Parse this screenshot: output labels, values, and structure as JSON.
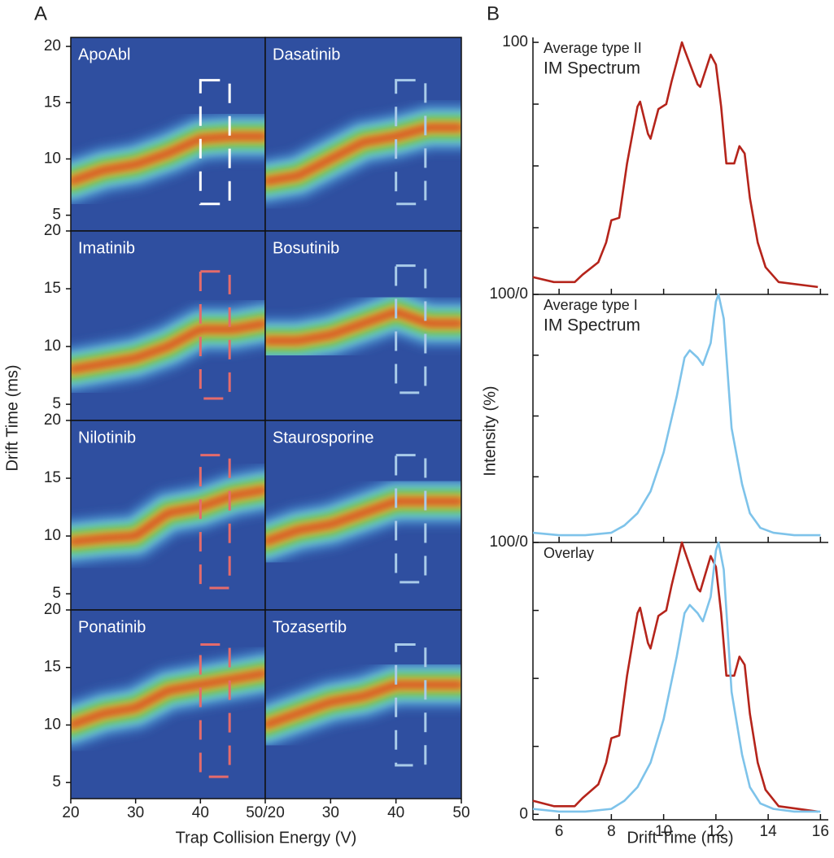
{
  "panels": [
    {
      "label": "A",
      "xlabel": "Trap Collision Energy (V)",
      "ylabel": "Drift Time (ms)"
    },
    {
      "label": "B",
      "xlabel": "Drift Time (ms)",
      "ylabel": "Intensity (%)"
    }
  ],
  "chart_data": [
    {
      "type": "heatmap",
      "title": "ApoAbl",
      "xlim": [
        20,
        50
      ],
      "ylim": [
        3.6,
        20.8
      ],
      "yticks": [
        5,
        10,
        15,
        20
      ],
      "ridge": {
        "x": [
          20,
          25,
          30,
          35,
          40,
          45,
          50
        ],
        "y": [
          8,
          9,
          9.5,
          10.5,
          11.8,
          12,
          12
        ]
      },
      "box": {
        "x": [
          40,
          44.5
        ],
        "y": [
          6,
          17
        ],
        "color": "#ffffff"
      }
    },
    {
      "type": "heatmap",
      "title": "Dasatinib",
      "xlim": [
        20,
        50
      ],
      "ylim": [
        3.6,
        20.8
      ],
      "ridge": {
        "x": [
          20,
          25,
          30,
          35,
          40,
          45,
          50
        ],
        "y": [
          8,
          8.5,
          10,
          11.5,
          12,
          12.8,
          12.8
        ]
      },
      "box": {
        "x": [
          40,
          44.5
        ],
        "y": [
          6,
          17
        ],
        "color": "#a9cbe9"
      }
    },
    {
      "type": "heatmap",
      "title": "Imatinib",
      "xlim": [
        20,
        50
      ],
      "ylim": [
        3.6,
        20
      ],
      "yticks": [
        5,
        10,
        15,
        20
      ],
      "ridge": {
        "x": [
          20,
          25,
          30,
          35,
          40,
          45,
          50
        ],
        "y": [
          8,
          8.5,
          9,
          10,
          11.5,
          11.5,
          12
        ]
      },
      "box": {
        "x": [
          40,
          44.5
        ],
        "y": [
          5.5,
          16.5
        ],
        "color": "#e56b6b"
      }
    },
    {
      "type": "heatmap",
      "title": "Bosutinib",
      "xlim": [
        20,
        50
      ],
      "ylim": [
        3.6,
        20
      ],
      "ridge": {
        "x": [
          20,
          25,
          30,
          35,
          40,
          45,
          50
        ],
        "y": [
          10.5,
          10.5,
          11,
          12,
          13,
          12,
          12
        ]
      },
      "box": {
        "x": [
          40,
          44.5
        ],
        "y": [
          6,
          17
        ],
        "color": "#a9cbe9"
      }
    },
    {
      "type": "heatmap",
      "title": "Nilotinib",
      "xlim": [
        20,
        50
      ],
      "ylim": [
        3.6,
        20
      ],
      "yticks": [
        5,
        10,
        15,
        20
      ],
      "ridge": {
        "x": [
          20,
          25,
          30,
          35,
          40,
          45,
          50
        ],
        "y": [
          9.5,
          9.8,
          10,
          12,
          12.5,
          13.5,
          14
        ]
      },
      "box": {
        "x": [
          40,
          44.5
        ],
        "y": [
          5.5,
          17
        ],
        "color": "#e56b6b"
      }
    },
    {
      "type": "heatmap",
      "title": "Staurosporine",
      "xlim": [
        20,
        50
      ],
      "ylim": [
        3.6,
        20
      ],
      "ridge": {
        "x": [
          20,
          25,
          30,
          35,
          40,
          45,
          50
        ],
        "y": [
          9.5,
          10.5,
          11,
          12,
          13,
          13,
          13
        ]
      },
      "box": {
        "x": [
          40,
          44.5
        ],
        "y": [
          6,
          17
        ],
        "color": "#a9cbe9"
      }
    },
    {
      "type": "heatmap",
      "title": "Ponatinib",
      "xlim": [
        20,
        50
      ],
      "ylim": [
        3.6,
        20
      ],
      "yticks": [
        5,
        10,
        15,
        20
      ],
      "xticks": [
        20,
        30,
        40,
        {
          "value": 50,
          "label": "50/20"
        }
      ],
      "ridge": {
        "x": [
          20,
          25,
          30,
          35,
          40,
          45,
          50
        ],
        "y": [
          10,
          11,
          11.5,
          13,
          13.5,
          14,
          14.5
        ]
      },
      "box": {
        "x": [
          40,
          44.5
        ],
        "y": [
          5.5,
          17
        ],
        "color": "#e56b6b"
      }
    },
    {
      "type": "heatmap",
      "title": "Tozasertib",
      "xlim": [
        20,
        50
      ],
      "ylim": [
        3.6,
        20
      ],
      "xticks": [
        30,
        40,
        50
      ],
      "ridge": {
        "x": [
          20,
          25,
          30,
          35,
          40,
          45,
          50
        ],
        "y": [
          10,
          11,
          12,
          12.5,
          13.5,
          13.5,
          13.5
        ]
      },
      "box": {
        "x": [
          40,
          44.5
        ],
        "y": [
          6.5,
          17
        ],
        "color": "#a9cbe9"
      }
    },
    {
      "type": "line",
      "title": [
        "Average type II",
        "IM Spectrum"
      ],
      "xlim": [
        5,
        16.3
      ],
      "ylim": [
        -2,
        102
      ],
      "yticks": [
        100
      ],
      "yminor": [
        25,
        50,
        75
      ],
      "series": [
        {
          "color": "#b5241b",
          "x": [
            5,
            5.8,
            6.6,
            6.9,
            7.5,
            7.8,
            8.0,
            8.3,
            8.6,
            9.0,
            9.1,
            9.4,
            9.5,
            9.8,
            10.1,
            10.3,
            10.7,
            10.8,
            11.3,
            11.4,
            11.8,
            12.0,
            12.2,
            12.4,
            12.7,
            12.9,
            13.1,
            13.3,
            13.6,
            13.9,
            14.4,
            15.9
          ],
          "values": [
            5,
            3,
            3,
            6,
            11,
            19,
            28,
            29,
            51,
            74,
            76,
            63,
            61,
            73,
            75,
            84,
            100,
            97,
            83,
            82,
            95,
            91,
            74,
            51,
            51,
            58,
            55,
            37,
            19,
            9,
            3,
            1
          ]
        }
      ]
    },
    {
      "type": "line",
      "title": [
        "Average type I",
        "IM Spectrum"
      ],
      "xlim": [
        5,
        16.3
      ],
      "ylim": [
        -2,
        100
      ],
      "yticks": [
        {
          "value": 100,
          "label": "100/0"
        }
      ],
      "yminor": [
        25,
        50,
        75
      ],
      "series": [
        {
          "color": "#7ec3ea",
          "x": [
            5,
            6,
            7,
            8,
            8.5,
            9,
            9.5,
            10,
            10.5,
            10.8,
            11,
            11.3,
            11.5,
            11.8,
            12,
            12.1,
            12.3,
            12.6,
            13,
            13.3,
            13.7,
            14.2,
            15,
            16
          ],
          "values": [
            2,
            1,
            1,
            2,
            5,
            10,
            19,
            35,
            58,
            74,
            77,
            74,
            71,
            80,
            97,
            100,
            90,
            45,
            22,
            10,
            4,
            2,
            1,
            1
          ]
        }
      ]
    },
    {
      "type": "line",
      "title": [
        "Overlay"
      ],
      "xlim": [
        5,
        16.3
      ],
      "ylim": [
        -2,
        100
      ],
      "yticks": [
        {
          "value": 100,
          "label": "100/0"
        },
        0
      ],
      "yminor": [
        25,
        50,
        75
      ],
      "xticks": [
        6,
        8,
        10,
        12,
        14,
        16
      ],
      "series": [
        {
          "color": "#b5241b",
          "x": [
            5,
            5.8,
            6.6,
            6.9,
            7.5,
            7.8,
            8.0,
            8.3,
            8.6,
            9.0,
            9.1,
            9.4,
            9.5,
            9.8,
            10.1,
            10.3,
            10.7,
            10.8,
            11.3,
            11.4,
            11.8,
            12.0,
            12.2,
            12.4,
            12.7,
            12.9,
            13.1,
            13.3,
            13.6,
            13.9,
            14.4,
            15.9
          ],
          "values": [
            5,
            3,
            3,
            6,
            11,
            19,
            28,
            29,
            51,
            74,
            76,
            63,
            61,
            73,
            75,
            84,
            100,
            97,
            83,
            82,
            95,
            91,
            74,
            51,
            51,
            58,
            55,
            37,
            19,
            9,
            3,
            1
          ]
        },
        {
          "color": "#7ec3ea",
          "x": [
            5,
            6,
            7,
            8,
            8.5,
            9,
            9.5,
            10,
            10.5,
            10.8,
            11,
            11.3,
            11.5,
            11.8,
            12,
            12.1,
            12.3,
            12.6,
            13,
            13.3,
            13.7,
            14.2,
            15,
            16
          ],
          "values": [
            2,
            1,
            1,
            2,
            5,
            10,
            19,
            35,
            58,
            74,
            77,
            74,
            71,
            80,
            97,
            100,
            90,
            45,
            22,
            10,
            4,
            2,
            1,
            1
          ]
        }
      ]
    }
  ]
}
